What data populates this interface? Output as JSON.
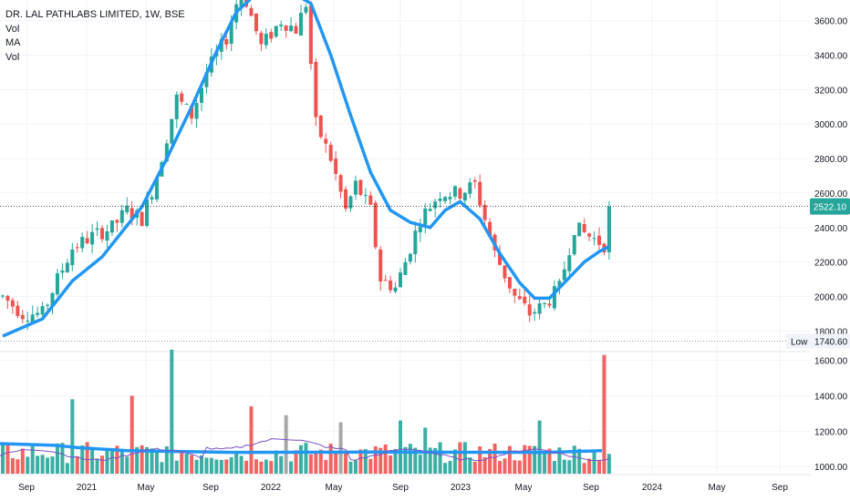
{
  "legend": {
    "symbol": "DR. LAL PATHLABS LIMITED, 1W, BSE",
    "indicator_1": "Vol",
    "indicator_2": "MA",
    "indicator_3": "Vol"
  },
  "colors": {
    "up": "#26a69a",
    "down": "#ef5350",
    "ma": "#2196f3",
    "vol_ma": "#7b4fc9",
    "price_label": "#26a69a"
  },
  "chart_data": {
    "type": "candlestick",
    "price_axis": {
      "ylim": [
        1680,
        3720
      ],
      "ticks": [
        "3600.00",
        "3400.00",
        "3200.00",
        "3000.00",
        "2800.00",
        "2600.00",
        "2400.00",
        "2200.00",
        "2000.00",
        "1800.00"
      ]
    },
    "volume_axis": {
      "ylim": [
        960,
        1680
      ],
      "ticks": [
        "1600.00",
        "1400.00",
        "1200.00",
        "1000.00"
      ]
    },
    "x_labels": [
      "Sep",
      "2021",
      "May",
      "Sep",
      "2022",
      "May",
      "Sep",
      "2023",
      "May",
      "Sep",
      "2024",
      "May",
      "Sep"
    ],
    "last_price": "2522.10",
    "low_label": "Low",
    "low_value": "1740.60",
    "price_path": [
      [
        0,
        2000
      ],
      [
        4,
        1900
      ],
      [
        8,
        1900
      ],
      [
        11,
        2100
      ],
      [
        14,
        2280
      ],
      [
        18,
        2350
      ],
      [
        22,
        2400
      ],
      [
        25,
        2500
      ],
      [
        28,
        2450
      ],
      [
        31,
        2700
      ],
      [
        35,
        3150
      ],
      [
        38,
        3050
      ],
      [
        41,
        3300
      ],
      [
        45,
        3500
      ],
      [
        48,
        3800
      ],
      [
        52,
        3450
      ],
      [
        56,
        3600
      ],
      [
        59,
        3550
      ],
      [
        61,
        3700
      ],
      [
        63,
        3000
      ],
      [
        66,
        2800
      ],
      [
        69,
        2500
      ],
      [
        71,
        2650
      ],
      [
        74,
        2500
      ],
      [
        76,
        2100
      ],
      [
        79,
        2050
      ],
      [
        81,
        2200
      ],
      [
        84,
        2450
      ],
      [
        88,
        2600
      ],
      [
        92,
        2600
      ],
      [
        95,
        2650
      ],
      [
        99,
        2250
      ],
      [
        103,
        2000
      ],
      [
        106,
        1900
      ],
      [
        109,
        1950
      ],
      [
        112,
        2050
      ],
      [
        115,
        2400
      ],
      [
        118,
        2350
      ],
      [
        121,
        2300
      ],
      [
        122,
        2522
      ]
    ],
    "ma_path": [
      [
        0,
        1770
      ],
      [
        8,
        1870
      ],
      [
        14,
        2090
      ],
      [
        20,
        2230
      ],
      [
        28,
        2520
      ],
      [
        33,
        2800
      ],
      [
        38,
        3100
      ],
      [
        43,
        3420
      ],
      [
        47,
        3650
      ],
      [
        50,
        3730
      ],
      [
        55,
        3740
      ],
      [
        59,
        3750
      ],
      [
        62,
        3700
      ],
      [
        66,
        3400
      ],
      [
        70,
        3050
      ],
      [
        74,
        2720
      ],
      [
        78,
        2500
      ],
      [
        82,
        2430
      ],
      [
        86,
        2400
      ],
      [
        89,
        2500
      ],
      [
        92,
        2550
      ],
      [
        96,
        2450
      ],
      [
        100,
        2250
      ],
      [
        104,
        2080
      ],
      [
        107,
        1990
      ],
      [
        110,
        1990
      ],
      [
        113,
        2080
      ],
      [
        117,
        2200
      ],
      [
        120,
        2260
      ],
      [
        122,
        2290
      ]
    ],
    "volume_ma_value": 1090
  }
}
